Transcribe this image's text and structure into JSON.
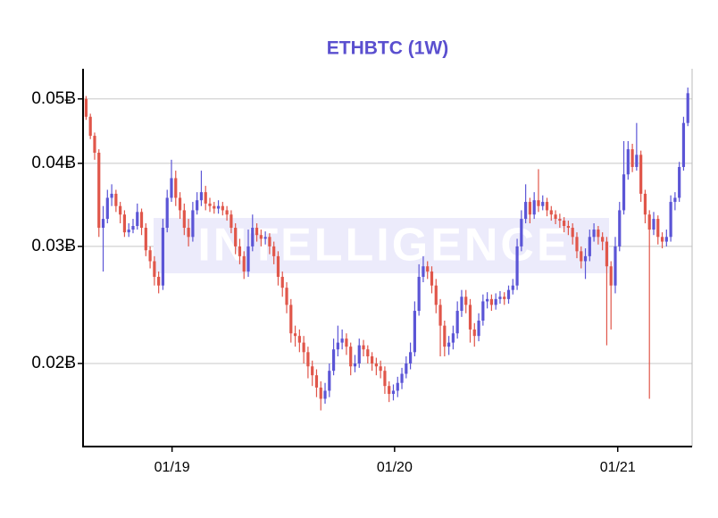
{
  "chart_data": {
    "type": "candlestick",
    "title": "ETHBTC (1W)",
    "watermark": "INTELLIGENCE",
    "log_scale": true,
    "grid": true,
    "up_color": "#5b55d6",
    "down_color": "#e0564a",
    "xlim": [
      "2018-08-08",
      "2021-05-03"
    ],
    "xticks": [
      {
        "value": "2019-01-01",
        "label": "01/19"
      },
      {
        "value": "2020-01-01",
        "label": "01/20"
      },
      {
        "value": "2021-01-01",
        "label": "01/21"
      }
    ],
    "ylim": [
      0.015,
      0.0555
    ],
    "yticks": [
      {
        "value": 0.02,
        "label": "0.02Ƀ"
      },
      {
        "value": 0.03,
        "label": "0.03Ƀ"
      },
      {
        "value": 0.04,
        "label": "0.04Ƀ"
      },
      {
        "value": 0.05,
        "label": "0.05Ƀ"
      }
    ],
    "x": [
      "2018-08-13",
      "2018-08-20",
      "2018-08-27",
      "2018-09-03",
      "2018-09-10",
      "2018-09-17",
      "2018-09-24",
      "2018-10-01",
      "2018-10-08",
      "2018-10-15",
      "2018-10-22",
      "2018-10-29",
      "2018-11-05",
      "2018-11-12",
      "2018-11-19",
      "2018-11-26",
      "2018-12-03",
      "2018-12-10",
      "2018-12-17",
      "2018-12-24",
      "2018-12-31",
      "2019-01-07",
      "2019-01-14",
      "2019-01-21",
      "2019-01-28",
      "2019-02-04",
      "2019-02-11",
      "2019-02-18",
      "2019-02-25",
      "2019-03-04",
      "2019-03-11",
      "2019-03-18",
      "2019-03-25",
      "2019-04-01",
      "2019-04-08",
      "2019-04-15",
      "2019-04-22",
      "2019-04-29",
      "2019-05-06",
      "2019-05-13",
      "2019-05-20",
      "2019-05-27",
      "2019-06-03",
      "2019-06-10",
      "2019-06-17",
      "2019-06-24",
      "2019-07-01",
      "2019-07-08",
      "2019-07-15",
      "2019-07-22",
      "2019-07-29",
      "2019-08-05",
      "2019-08-12",
      "2019-08-19",
      "2019-08-26",
      "2019-09-02",
      "2019-09-09",
      "2019-09-16",
      "2019-09-23",
      "2019-09-30",
      "2019-10-07",
      "2019-10-14",
      "2019-10-21",
      "2019-10-28",
      "2019-11-04",
      "2019-11-11",
      "2019-11-18",
      "2019-11-25",
      "2019-12-02",
      "2019-12-09",
      "2019-12-16",
      "2019-12-23",
      "2019-12-30",
      "2020-01-06",
      "2020-01-13",
      "2020-01-20",
      "2020-01-27",
      "2020-02-03",
      "2020-02-10",
      "2020-02-17",
      "2020-02-24",
      "2020-03-02",
      "2020-03-09",
      "2020-03-16",
      "2020-03-23",
      "2020-03-30",
      "2020-04-06",
      "2020-04-13",
      "2020-04-20",
      "2020-04-27",
      "2020-05-04",
      "2020-05-11",
      "2020-05-18",
      "2020-05-25",
      "2020-06-01",
      "2020-06-08",
      "2020-06-15",
      "2020-06-22",
      "2020-06-29",
      "2020-07-06",
      "2020-07-13",
      "2020-07-20",
      "2020-07-27",
      "2020-08-03",
      "2020-08-10",
      "2020-08-17",
      "2020-08-24",
      "2020-08-31",
      "2020-09-07",
      "2020-09-14",
      "2020-09-21",
      "2020-09-28",
      "2020-10-05",
      "2020-10-12",
      "2020-10-19",
      "2020-10-26",
      "2020-11-02",
      "2020-11-09",
      "2020-11-16",
      "2020-11-23",
      "2020-11-30",
      "2020-12-07",
      "2020-12-14",
      "2020-12-21",
      "2020-12-28",
      "2021-01-04",
      "2021-01-11",
      "2021-01-18",
      "2021-01-25",
      "2021-02-01",
      "2021-02-08",
      "2021-02-15",
      "2021-02-22",
      "2021-03-01",
      "2021-03-08",
      "2021-03-15",
      "2021-03-22",
      "2021-03-29",
      "2021-04-05",
      "2021-04-12",
      "2021-04-19",
      "2021-04-26"
    ],
    "open": [
      0.05,
      0.047,
      0.044,
      0.0415,
      0.032,
      0.033,
      0.0355,
      0.036,
      0.0345,
      0.0335,
      0.0315,
      0.0318,
      0.0322,
      0.0338,
      0.032,
      0.0296,
      0.0285,
      0.027,
      0.0262,
      0.032,
      0.0355,
      0.038,
      0.0355,
      0.034,
      0.032,
      0.031,
      0.034,
      0.0352,
      0.0362,
      0.0348,
      0.0345,
      0.0342,
      0.0345,
      0.034,
      0.0335,
      0.032,
      0.03,
      0.029,
      0.0275,
      0.03,
      0.032,
      0.0312,
      0.0308,
      0.031,
      0.03,
      0.029,
      0.027,
      0.026,
      0.0245,
      0.0222,
      0.022,
      0.0215,
      0.0208,
      0.0198,
      0.0192,
      0.0184,
      0.0177,
      0.0182,
      0.0195,
      0.021,
      0.0215,
      0.0218,
      0.0212,
      0.0198,
      0.02,
      0.0213,
      0.021,
      0.0205,
      0.02,
      0.0198,
      0.0195,
      0.0185,
      0.018,
      0.0182,
      0.0187,
      0.0193,
      0.02,
      0.0208,
      0.024,
      0.027,
      0.028,
      0.0275,
      0.0262,
      0.0245,
      0.0228,
      0.0212,
      0.0215,
      0.0222,
      0.024,
      0.0252,
      0.0245,
      0.0225,
      0.022,
      0.0232,
      0.0248,
      0.025,
      0.0245,
      0.025,
      0.0252,
      0.025,
      0.0258,
      0.0262,
      0.03,
      0.033,
      0.035,
      0.0335,
      0.0352,
      0.0345,
      0.035,
      0.034,
      0.0335,
      0.033,
      0.0328,
      0.0322,
      0.032,
      0.031,
      0.0295,
      0.0285,
      0.029,
      0.031,
      0.0318,
      0.031,
      0.0305,
      0.028,
      0.0262,
      0.03,
      0.034,
      0.0385,
      0.042,
      0.0395,
      0.0412,
      0.036,
      0.0335,
      0.0318,
      0.033,
      0.031,
      0.0305,
      0.031,
      0.035,
      0.0355,
      0.0395,
      0.046
    ],
    "high": [
      0.0505,
      0.0475,
      0.0445,
      0.042,
      0.0345,
      0.0365,
      0.0372,
      0.0365,
      0.035,
      0.034,
      0.0325,
      0.033,
      0.0348,
      0.0342,
      0.0325,
      0.03,
      0.029,
      0.0275,
      0.033,
      0.0365,
      0.0405,
      0.039,
      0.0362,
      0.0348,
      0.033,
      0.035,
      0.0362,
      0.039,
      0.037,
      0.0355,
      0.035,
      0.0352,
      0.035,
      0.0345,
      0.034,
      0.0325,
      0.0308,
      0.0295,
      0.0318,
      0.0335,
      0.0325,
      0.0318,
      0.0316,
      0.0314,
      0.0305,
      0.0295,
      0.0275,
      0.0265,
      0.025,
      0.0228,
      0.0225,
      0.022,
      0.0212,
      0.0202,
      0.0196,
      0.0188,
      0.0187,
      0.02,
      0.0218,
      0.0228,
      0.0225,
      0.0222,
      0.0215,
      0.0206,
      0.0218,
      0.0217,
      0.0213,
      0.0208,
      0.0204,
      0.0202,
      0.0198,
      0.0188,
      0.0186,
      0.0191,
      0.0197,
      0.0205,
      0.0215,
      0.0248,
      0.0282,
      0.029,
      0.0285,
      0.028,
      0.0268,
      0.025,
      0.0232,
      0.022,
      0.0228,
      0.0248,
      0.0258,
      0.0258,
      0.025,
      0.023,
      0.0238,
      0.0254,
      0.0256,
      0.0254,
      0.0255,
      0.0257,
      0.0256,
      0.0262,
      0.0268,
      0.0308,
      0.034,
      0.0372,
      0.0355,
      0.0362,
      0.0392,
      0.0358,
      0.0355,
      0.0345,
      0.034,
      0.0336,
      0.0332,
      0.0328,
      0.0325,
      0.0315,
      0.03,
      0.0298,
      0.0318,
      0.0325,
      0.0322,
      0.0315,
      0.031,
      0.0285,
      0.031,
      0.035,
      0.0432,
      0.0432,
      0.0428,
      0.046,
      0.0418,
      0.0365,
      0.034,
      0.0338,
      0.0334,
      0.0315,
      0.0318,
      0.0358,
      0.0362,
      0.0402,
      0.047,
      0.052
    ],
    "low": [
      0.0465,
      0.0435,
      0.0405,
      0.031,
      0.0275,
      0.0325,
      0.0345,
      0.0338,
      0.0325,
      0.031,
      0.031,
      0.0314,
      0.0318,
      0.0312,
      0.029,
      0.0278,
      0.0262,
      0.0255,
      0.0258,
      0.0315,
      0.035,
      0.0345,
      0.033,
      0.0312,
      0.03,
      0.0305,
      0.0335,
      0.0345,
      0.034,
      0.0338,
      0.0336,
      0.0336,
      0.0334,
      0.0328,
      0.0314,
      0.0292,
      0.0282,
      0.0268,
      0.027,
      0.0295,
      0.0305,
      0.03,
      0.0302,
      0.0292,
      0.0282,
      0.0262,
      0.0252,
      0.0238,
      0.0215,
      0.0212,
      0.0208,
      0.02,
      0.019,
      0.0185,
      0.0178,
      0.017,
      0.0174,
      0.0178,
      0.0192,
      0.0205,
      0.021,
      0.0206,
      0.0192,
      0.0194,
      0.0197,
      0.0205,
      0.02,
      0.0195,
      0.0192,
      0.019,
      0.018,
      0.0175,
      0.0176,
      0.0178,
      0.0183,
      0.019,
      0.0196,
      0.0205,
      0.0236,
      0.0265,
      0.0268,
      0.0255,
      0.0238,
      0.0205,
      0.0205,
      0.0206,
      0.021,
      0.0218,
      0.0235,
      0.0238,
      0.0215,
      0.0212,
      0.0216,
      0.0228,
      0.0242,
      0.024,
      0.0241,
      0.0246,
      0.0245,
      0.0246,
      0.0254,
      0.0258,
      0.0295,
      0.0325,
      0.0325,
      0.033,
      0.0338,
      0.034,
      0.0333,
      0.0328,
      0.0324,
      0.032,
      0.0315,
      0.0312,
      0.0302,
      0.0288,
      0.0278,
      0.0268,
      0.0285,
      0.0305,
      0.0302,
      0.0296,
      0.0213,
      0.0225,
      0.0255,
      0.0295,
      0.0335,
      0.0378,
      0.0388,
      0.039,
      0.035,
      0.0325,
      0.0177,
      0.0312,
      0.0302,
      0.0298,
      0.03,
      0.0305,
      0.034,
      0.035,
      0.039,
      0.0455
    ],
    "close": [
      0.047,
      0.044,
      0.0415,
      0.032,
      0.033,
      0.0355,
      0.036,
      0.0345,
      0.0335,
      0.0315,
      0.0318,
      0.0322,
      0.0338,
      0.032,
      0.0296,
      0.0285,
      0.027,
      0.0262,
      0.032,
      0.0355,
      0.038,
      0.0355,
      0.034,
      0.032,
      0.031,
      0.034,
      0.0352,
      0.0362,
      0.0348,
      0.0345,
      0.0342,
      0.0345,
      0.034,
      0.0335,
      0.032,
      0.03,
      0.029,
      0.0275,
      0.03,
      0.032,
      0.0312,
      0.0308,
      0.031,
      0.03,
      0.029,
      0.027,
      0.026,
      0.0245,
      0.0222,
      0.022,
      0.0215,
      0.0208,
      0.0198,
      0.0192,
      0.0184,
      0.0177,
      0.0182,
      0.0195,
      0.021,
      0.0215,
      0.0218,
      0.0212,
      0.0198,
      0.02,
      0.0213,
      0.021,
      0.0205,
      0.02,
      0.0198,
      0.0195,
      0.0185,
      0.018,
      0.0182,
      0.0187,
      0.0193,
      0.02,
      0.0208,
      0.024,
      0.027,
      0.028,
      0.0275,
      0.0262,
      0.0245,
      0.0228,
      0.0212,
      0.0215,
      0.0222,
      0.024,
      0.0252,
      0.0245,
      0.0225,
      0.022,
      0.0232,
      0.0248,
      0.025,
      0.0245,
      0.025,
      0.0252,
      0.025,
      0.0258,
      0.0262,
      0.03,
      0.033,
      0.035,
      0.0335,
      0.0352,
      0.0345,
      0.035,
      0.034,
      0.0335,
      0.033,
      0.0328,
      0.0322,
      0.032,
      0.031,
      0.0295,
      0.0285,
      0.029,
      0.031,
      0.0318,
      0.031,
      0.0305,
      0.028,
      0.0262,
      0.03,
      0.034,
      0.0385,
      0.042,
      0.0395,
      0.0412,
      0.036,
      0.0335,
      0.0318,
      0.033,
      0.031,
      0.0305,
      0.031,
      0.035,
      0.0355,
      0.0395,
      0.046,
      0.051
    ]
  }
}
